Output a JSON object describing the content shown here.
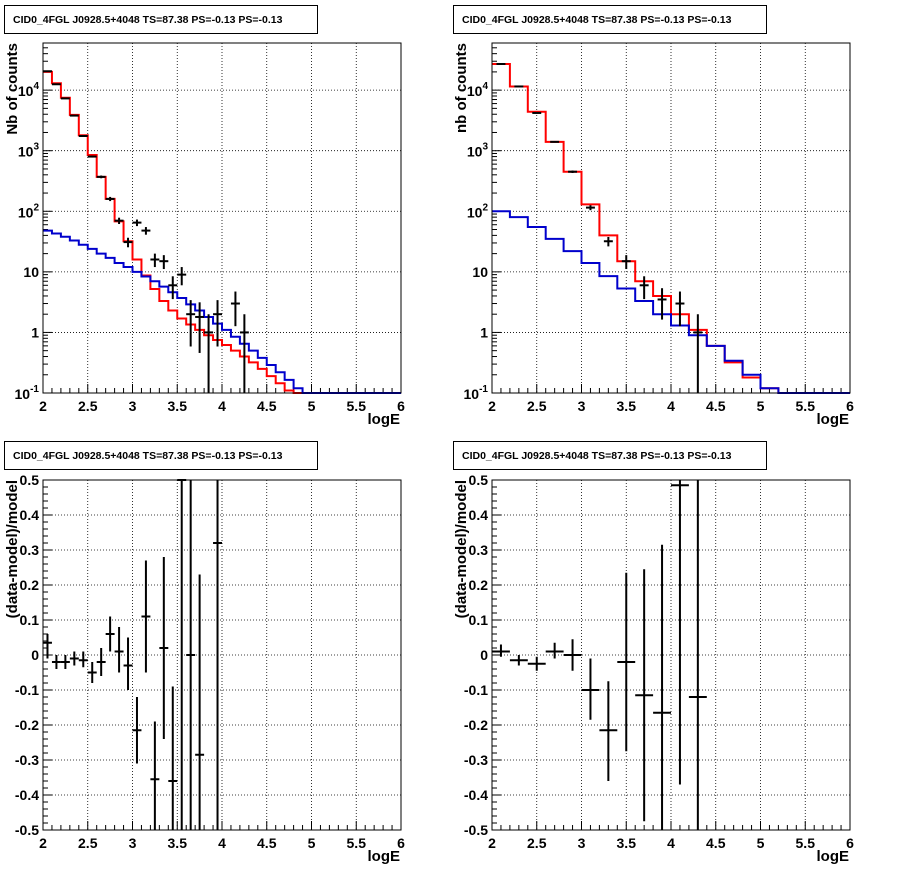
{
  "colors": {
    "frame": "#000000",
    "data": "#000000",
    "total_model": "#ff0000",
    "background_model": "#0000cc",
    "grid": "#000000"
  },
  "chart_data": [
    {
      "id": "top-left",
      "type": "line",
      "title": "CID0_4FGL J0928.5+4048 TS=87.38 PS=-0.13 PS=-0.13",
      "xlabel": "logE",
      "ylabel": "Nb of counts",
      "xlim": [
        2,
        6
      ],
      "ylim": [
        0.1,
        60000
      ],
      "yscale": "log",
      "grid": true,
      "xticks": [
        "2",
        "2.5",
        "3",
        "3.5",
        "4",
        "4.5",
        "5",
        "5.5",
        "6"
      ],
      "yticks": [
        {
          "value": 0.1,
          "base": "10",
          "exp": "-1"
        },
        {
          "value": 1,
          "label": "1"
        },
        {
          "value": 10,
          "label": "10"
        },
        {
          "value": 100,
          "base": "10",
          "exp": "2"
        },
        {
          "value": 1000,
          "base": "10",
          "exp": "3"
        },
        {
          "value": 10000,
          "base": "10",
          "exp": "4"
        }
      ],
      "bin_edges": [
        2.0,
        2.1,
        2.2,
        2.3,
        2.4,
        2.5,
        2.6,
        2.7,
        2.8,
        2.9,
        3.0,
        3.1,
        3.2,
        3.3,
        3.4,
        3.5,
        3.6,
        3.7,
        3.8,
        3.9,
        4.0,
        4.1,
        4.2,
        4.3,
        4.4,
        4.5,
        4.6,
        4.7,
        4.8,
        4.9,
        5.0,
        5.1,
        5.2,
        5.3,
        5.4,
        5.5,
        5.6,
        5.7,
        5.8,
        5.9,
        6.0
      ],
      "series": [
        {
          "name": "total model",
          "role": "total_model",
          "values": [
            20000,
            13000,
            7500,
            3900,
            1800,
            850,
            370,
            160,
            68,
            32,
            16,
            8.7,
            5.2,
            3.3,
            2.3,
            1.7,
            1.35,
            1.1,
            0.9,
            0.75,
            0.62,
            0.5,
            0.4,
            0.32,
            0.25,
            0.19,
            0.145,
            0.11,
            0.1,
            0.1,
            0.1,
            0.1,
            0.1,
            0.1,
            0.1,
            0.1,
            0.1,
            0.1,
            0.1,
            0.1
          ]
        },
        {
          "name": "background model",
          "role": "background_model",
          "values": [
            48,
            43,
            38,
            33,
            28,
            24,
            20,
            17,
            14,
            12,
            10,
            8.4,
            7,
            5.7,
            4.6,
            3.7,
            2.9,
            2.3,
            1.8,
            1.4,
            1.1,
            0.85,
            0.65,
            0.5,
            0.38,
            0.29,
            0.22,
            0.165,
            0.12,
            0.1,
            0.1,
            0.1,
            0.1,
            0.1,
            0.1,
            0.1,
            0.1,
            0.1,
            0.1,
            0.1
          ]
        }
      ],
      "points": [
        {
          "x": 2.05,
          "y": 20500
        },
        {
          "x": 2.15,
          "y": 12500
        },
        {
          "x": 2.25,
          "y": 7300
        },
        {
          "x": 2.35,
          "y": 3800
        },
        {
          "x": 2.45,
          "y": 1750
        },
        {
          "x": 2.55,
          "y": 800
        },
        {
          "x": 2.65,
          "y": 370
        },
        {
          "x": 2.75,
          "y": 160
        },
        {
          "x": 2.85,
          "y": 70
        },
        {
          "x": 2.95,
          "y": 31
        },
        {
          "x": 3.05,
          "y": 65
        },
        {
          "x": 3.15,
          "y": 48
        },
        {
          "x": 3.25,
          "y": 16
        },
        {
          "x": 3.35,
          "y": 15
        },
        {
          "x": 3.45,
          "y": 6
        },
        {
          "x": 3.55,
          "y": 9
        },
        {
          "x": 3.65,
          "y": 2
        },
        {
          "x": 3.75,
          "y": 1.8
        },
        {
          "x": 3.85,
          "y": 1
        },
        {
          "x": 3.95,
          "y": 2
        },
        {
          "x": 4.15,
          "y": 3
        },
        {
          "x": 4.25,
          "y": 1
        }
      ]
    },
    {
      "id": "top-right",
      "type": "line",
      "title": "CID0_4FGL J0928.5+4048 TS=87.38 PS=-0.13 PS=-0.13",
      "xlabel": "logE",
      "ylabel": "nb of counts",
      "xlim": [
        2,
        6
      ],
      "ylim": [
        0.1,
        60000
      ],
      "yscale": "log",
      "grid": true,
      "xticks": [
        "2",
        "2.5",
        "3",
        "3.5",
        "4",
        "4.5",
        "5",
        "5.5",
        "6"
      ],
      "yticks": [
        {
          "value": 0.1,
          "base": "10",
          "exp": "-1"
        },
        {
          "value": 1,
          "label": "1"
        },
        {
          "value": 10,
          "label": "10"
        },
        {
          "value": 100,
          "base": "10",
          "exp": "2"
        },
        {
          "value": 1000,
          "base": "10",
          "exp": "3"
        },
        {
          "value": 10000,
          "base": "10",
          "exp": "4"
        }
      ],
      "bin_edges": [
        2.0,
        2.2,
        2.4,
        2.6,
        2.8,
        3.0,
        3.2,
        3.4,
        3.6,
        3.8,
        4.0,
        4.2,
        4.4,
        4.6,
        4.8,
        5.0,
        5.2,
        5.4,
        5.6,
        5.8,
        6.0
      ],
      "series": [
        {
          "name": "total model",
          "role": "total_model",
          "values": [
            27000,
            11500,
            4400,
            1400,
            450,
            130,
            40,
            15,
            7,
            4,
            2,
            1.1,
            0.6,
            0.32,
            0.18,
            0.12,
            0.1,
            0.1,
            0.1,
            0.1
          ]
        },
        {
          "name": "background model",
          "role": "background_model",
          "values": [
            100,
            80,
            55,
            35,
            22,
            14,
            8.5,
            5.3,
            3.3,
            2,
            1.3,
            0.9,
            0.6,
            0.34,
            0.2,
            0.12,
            0.1,
            0.1,
            0.1,
            0.1
          ]
        }
      ],
      "points": [
        {
          "x": 2.1,
          "y": 27000
        },
        {
          "x": 2.3,
          "y": 11500
        },
        {
          "x": 2.5,
          "y": 4200
        },
        {
          "x": 2.7,
          "y": 1400
        },
        {
          "x": 2.9,
          "y": 450
        },
        {
          "x": 3.1,
          "y": 115
        },
        {
          "x": 3.3,
          "y": 32
        },
        {
          "x": 3.5,
          "y": 15
        },
        {
          "x": 3.7,
          "y": 6
        },
        {
          "x": 3.9,
          "y": 3.5
        },
        {
          "x": 4.1,
          "y": 3
        },
        {
          "x": 4.3,
          "y": 1
        }
      ]
    },
    {
      "id": "bottom-left",
      "type": "scatter",
      "title": "CID0_4FGL J0928.5+4048 TS=87.38 PS=-0.13 PS=-0.13",
      "xlabel": "logE",
      "ylabel": "(data-model)/model",
      "xlim": [
        2,
        6
      ],
      "ylim": [
        -0.5,
        0.5
      ],
      "yscale": "linear",
      "grid": true,
      "xticks": [
        "2",
        "2.5",
        "3",
        "3.5",
        "4",
        "4.5",
        "5",
        "5.5",
        "6"
      ],
      "yticks": [
        {
          "value": -0.5,
          "label": "-0.5"
        },
        {
          "value": -0.4,
          "label": "-0.4"
        },
        {
          "value": -0.3,
          "label": "-0.3"
        },
        {
          "value": -0.2,
          "label": "-0.2"
        },
        {
          "value": -0.1,
          "label": "-0.1"
        },
        {
          "value": 0,
          "label": "0"
        },
        {
          "value": 0.1,
          "label": "0.1"
        },
        {
          "value": 0.2,
          "label": "0.2"
        },
        {
          "value": 0.3,
          "label": "0.3"
        },
        {
          "value": 0.4,
          "label": "0.4"
        },
        {
          "value": 0.5,
          "label": "0.5"
        }
      ],
      "xerr": 0.05,
      "points": [
        {
          "x": 2.05,
          "y": 0.035,
          "lo": -0.01,
          "hi": 0.06
        },
        {
          "x": 2.15,
          "y": -0.02,
          "lo": -0.04,
          "hi": 0.0
        },
        {
          "x": 2.25,
          "y": -0.02,
          "lo": -0.04,
          "hi": 0.0
        },
        {
          "x": 2.35,
          "y": -0.01,
          "lo": -0.03,
          "hi": 0.01
        },
        {
          "x": 2.45,
          "y": -0.015,
          "lo": -0.035,
          "hi": 0.01
        },
        {
          "x": 2.55,
          "y": -0.05,
          "lo": -0.08,
          "hi": -0.02
        },
        {
          "x": 2.65,
          "y": -0.02,
          "lo": -0.06,
          "hi": 0.02
        },
        {
          "x": 2.75,
          "y": 0.06,
          "lo": 0.01,
          "hi": 0.11
        },
        {
          "x": 2.85,
          "y": 0.01,
          "lo": -0.05,
          "hi": 0.08
        },
        {
          "x": 2.95,
          "y": -0.03,
          "lo": -0.1,
          "hi": 0.05
        },
        {
          "x": 3.05,
          "y": -0.215,
          "lo": -0.31,
          "hi": -0.12
        },
        {
          "x": 3.15,
          "y": 0.11,
          "lo": -0.05,
          "hi": 0.27
        },
        {
          "x": 3.25,
          "y": -0.355,
          "lo": -0.5,
          "hi": -0.19
        },
        {
          "x": 3.35,
          "y": 0.02,
          "lo": -0.24,
          "hi": 0.28
        },
        {
          "x": 3.45,
          "y": -0.36,
          "lo": -0.5,
          "hi": -0.09
        },
        {
          "x": 3.55,
          "y": 0.5,
          "lo": -0.5,
          "hi": 0.5
        },
        {
          "x": 3.65,
          "y": 0.0,
          "lo": -0.5,
          "hi": 0.5
        },
        {
          "x": 3.75,
          "y": -0.285,
          "lo": -0.5,
          "hi": 0.23
        },
        {
          "x": 3.95,
          "y": 0.32,
          "lo": -0.5,
          "hi": 0.5
        }
      ]
    },
    {
      "id": "bottom-right",
      "type": "scatter",
      "title": "CID0_4FGL J0928.5+4048 TS=87.38 PS=-0.13 PS=-0.13",
      "xlabel": "logE",
      "ylabel": "(data-model)/model",
      "xlim": [
        2,
        6
      ],
      "ylim": [
        -0.5,
        0.5
      ],
      "yscale": "linear",
      "grid": true,
      "xticks": [
        "2",
        "2.5",
        "3",
        "3.5",
        "4",
        "4.5",
        "5",
        "5.5",
        "6"
      ],
      "yticks": [
        {
          "value": -0.5,
          "label": "-0.5"
        },
        {
          "value": -0.4,
          "label": "-0.4"
        },
        {
          "value": -0.3,
          "label": "-0.3"
        },
        {
          "value": -0.2,
          "label": "-0.2"
        },
        {
          "value": -0.1,
          "label": "-0.1"
        },
        {
          "value": 0,
          "label": "0"
        },
        {
          "value": 0.1,
          "label": "0.1"
        },
        {
          "value": 0.2,
          "label": "0.2"
        },
        {
          "value": 0.3,
          "label": "0.3"
        },
        {
          "value": 0.4,
          "label": "0.4"
        },
        {
          "value": 0.5,
          "label": "0.5"
        }
      ],
      "xerr": 0.1,
      "points": [
        {
          "x": 2.1,
          "y": 0.01,
          "lo": -0.005,
          "hi": 0.03
        },
        {
          "x": 2.3,
          "y": -0.015,
          "lo": -0.03,
          "hi": 0.0
        },
        {
          "x": 2.5,
          "y": -0.025,
          "lo": -0.045,
          "hi": -0.005
        },
        {
          "x": 2.7,
          "y": 0.01,
          "lo": -0.01,
          "hi": 0.035
        },
        {
          "x": 2.9,
          "y": 0.0,
          "lo": -0.045,
          "hi": 0.045
        },
        {
          "x": 3.1,
          "y": -0.1,
          "lo": -0.185,
          "hi": -0.01
        },
        {
          "x": 3.3,
          "y": -0.215,
          "lo": -0.36,
          "hi": -0.075
        },
        {
          "x": 3.5,
          "y": -0.02,
          "lo": -0.275,
          "hi": 0.235
        },
        {
          "x": 3.7,
          "y": -0.115,
          "lo": -0.475,
          "hi": 0.245
        },
        {
          "x": 3.9,
          "y": -0.165,
          "lo": -0.5,
          "hi": 0.315
        },
        {
          "x": 4.1,
          "y": 0.485,
          "lo": -0.37,
          "hi": 0.5
        },
        {
          "x": 4.3,
          "y": -0.12,
          "lo": -0.5,
          "hi": 0.5
        }
      ]
    }
  ]
}
